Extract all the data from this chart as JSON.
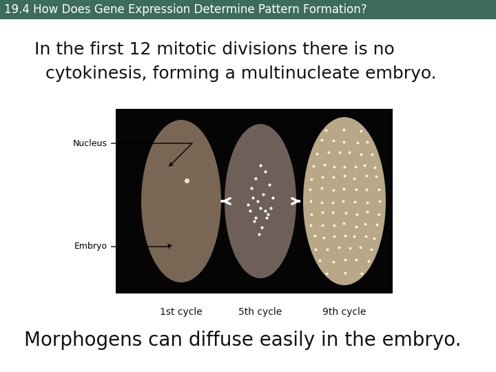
{
  "bg_color": "#ffffff",
  "header_bg": "#3d6b5e",
  "header_text": "19.4 How Does Gene Expression Determine Pattern Formation?",
  "header_text_color": "#ffffff",
  "header_fontsize": 12,
  "body_text1_line1": "In the first 12 mitotic divisions there is no",
  "body_text1_line2": "  cytokinesis, forming a multinucleate embryo.",
  "body_text1_fontsize": 18,
  "body_text2": "Morphogens can diffuse easily in the embryo.",
  "body_text2_fontsize": 20,
  "image_bg": "#050505",
  "embryo1_color": "#7a6655",
  "embryo2_color": "#6e6058",
  "embryo3_color": "#b8a888",
  "embryo3_glow": "#e8d8b0",
  "label_nucleus": "Nucleus",
  "label_embryo": "Embryo",
  "cycle_labels": [
    "1st cycle",
    "5th cycle",
    "9th cycle"
  ],
  "cycle_label_fontsize": 10,
  "annotation_color": "#000000",
  "annotation_fontsize": 9,
  "white_dot_color": "#ffffff",
  "arrow_color": "#ffffff"
}
